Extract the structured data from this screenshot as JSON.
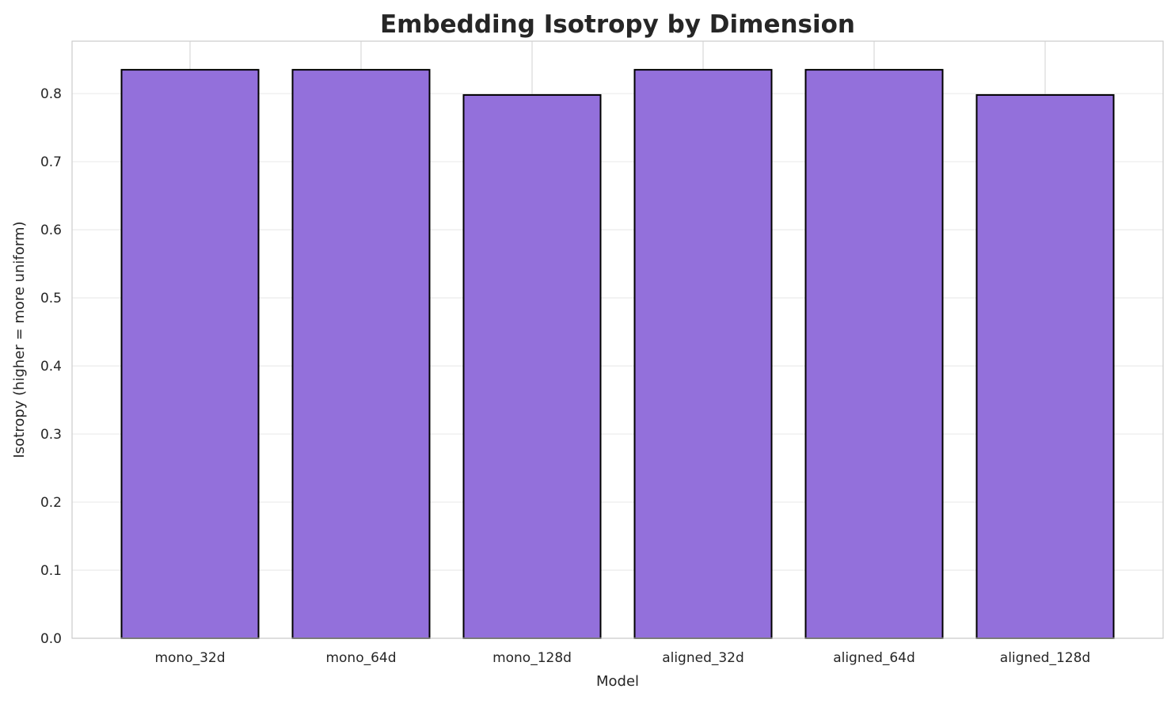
{
  "chart_data": {
    "type": "bar",
    "title": "Embedding Isotropy by Dimension",
    "xlabel": "Model",
    "ylabel": "Isotropy (higher = more uniform)",
    "categories": [
      "mono_32d",
      "mono_64d",
      "mono_128d",
      "aligned_32d",
      "aligned_64d",
      "aligned_128d"
    ],
    "values": [
      0.835,
      0.835,
      0.798,
      0.835,
      0.835,
      0.798
    ],
    "ylim": [
      0,
      0.877
    ],
    "yticks": [
      0.0,
      0.1,
      0.2,
      0.3,
      0.4,
      0.5,
      0.6,
      0.7,
      0.8
    ],
    "ytick_labels": [
      "0.0",
      "0.1",
      "0.2",
      "0.3",
      "0.4",
      "0.5",
      "0.6",
      "0.7",
      "0.8"
    ],
    "grid": true,
    "colors": {
      "bar": "#9370db",
      "edge": "#000000",
      "grid": "#ebebeb",
      "spine": "#cccccc"
    }
  }
}
